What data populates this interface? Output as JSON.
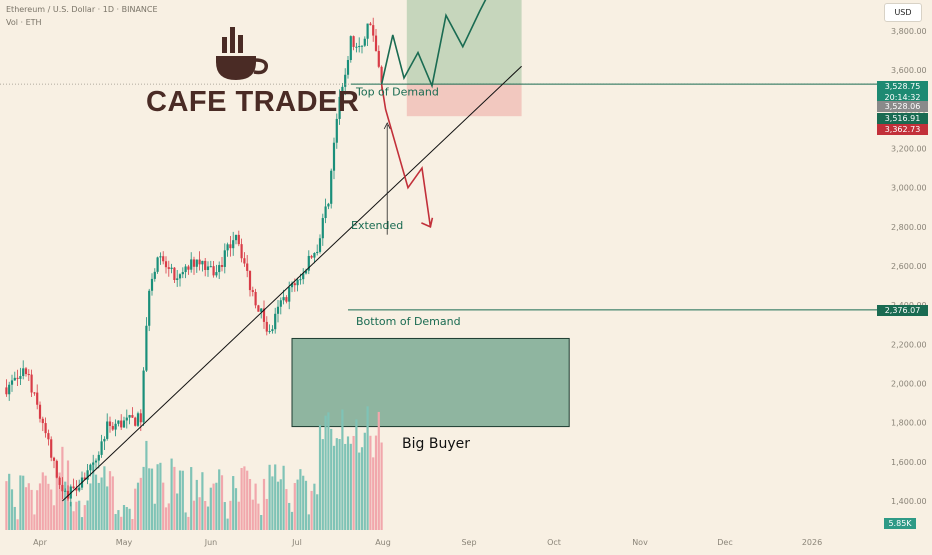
{
  "header": {
    "symbol": "Ethereum / U.S. Dollar · 1D · BINANCE",
    "volume_label": "Vol · ETH"
  },
  "currency_button": "USD",
  "brand": {
    "name": "CAFE TRADER",
    "color": "#4a2b25",
    "logo_icon": "coffee-cup-icon"
  },
  "annotations": {
    "top_of_demand": "Top of Demand",
    "extended": "Extended",
    "bottom_of_demand": "Bottom of Demand",
    "big_buyer": "Big Buyer"
  },
  "price_tags": [
    {
      "label": "3,528.75",
      "color": "#1e8a72"
    },
    {
      "label": "20:14:32",
      "color": "#1e8a72"
    },
    {
      "label": "3,528.06",
      "color": "#8a8a8a"
    },
    {
      "label": "3,516.91",
      "color": "#1a6b52"
    },
    {
      "label": "3,362.73",
      "color": "#c2303a"
    },
    {
      "label": "2,376.07",
      "color": "#1a6b52"
    }
  ],
  "volume_tag": {
    "label": "5.85K",
    "color": "#2e9a86"
  },
  "chart_data": {
    "type": "candlestick",
    "y_axis": {
      "ticks": [
        1400,
        1600,
        1800,
        2000,
        2200,
        2400,
        2600,
        2800,
        3000,
        3200,
        3400,
        3600,
        3800
      ],
      "tick_labels": [
        "1,400.00",
        "1,600.00",
        "1,800.00",
        "2,000.00",
        "2,200.00",
        "2,400.00",
        "2,600.00",
        "2,800.00",
        "3,000.00",
        "3,200.00",
        "3,400.00",
        "3,600.00",
        "3,800.00"
      ],
      "range": [
        1300,
        3900
      ]
    },
    "x_axis": {
      "labels": [
        "Apr",
        "May",
        "Jun",
        "Jul",
        "Aug",
        "Sep",
        "Oct",
        "Nov",
        "Dec",
        "2026"
      ]
    },
    "current_price": 3528.75,
    "colors": {
      "up": "#1a8f7a",
      "down": "#d83c47",
      "vol_up": "#7fc3b6",
      "vol_down": "#f1a7ac"
    },
    "key_points": [
      {
        "date": "Mar 20",
        "price": 1980
      },
      {
        "date": "Mar 27",
        "price": 2060
      },
      {
        "date": "Apr 2",
        "price": 1790
      },
      {
        "date": "Apr 9",
        "price": 1420
      },
      {
        "date": "Apr 20",
        "price": 1570
      },
      {
        "date": "Apr 25",
        "price": 1780
      },
      {
        "date": "May 7",
        "price": 1820
      },
      {
        "date": "May 10",
        "price": 2500
      },
      {
        "date": "May 13",
        "price": 2650
      },
      {
        "date": "May 20",
        "price": 2520
      },
      {
        "date": "May 27",
        "price": 2640
      },
      {
        "date": "Jun 3",
        "price": 2560
      },
      {
        "date": "Jun 10",
        "price": 2780
      },
      {
        "date": "Jun 15",
        "price": 2500
      },
      {
        "date": "Jun 22",
        "price": 2250
      },
      {
        "date": "Jun 26",
        "price": 2410
      },
      {
        "date": "Jul 3",
        "price": 2550
      },
      {
        "date": "Jul 9",
        "price": 2700
      },
      {
        "date": "Jul 13",
        "price": 2950
      },
      {
        "date": "Jul 16",
        "price": 3350
      },
      {
        "date": "Jul 21",
        "price": 3750
      },
      {
        "date": "Jul 24",
        "price": 3700
      },
      {
        "date": "Jul 28",
        "price": 3860
      },
      {
        "date": "Aug 1",
        "price": 3520
      }
    ],
    "zones": [
      {
        "label": "Big Buyer",
        "low": 1780,
        "high": 2230,
        "color": "#8fb5a0"
      },
      {
        "label": "target",
        "low": 3528,
        "high": 3900,
        "color": "#c6d6bc"
      },
      {
        "label": "stop",
        "low": 3365,
        "high": 3528,
        "color": "#f2c8bf"
      }
    ],
    "levels": [
      {
        "label": "Top of Demand",
        "price": 3528.75
      },
      {
        "label": "Bottom of Demand",
        "price": 2376.07
      }
    ],
    "trendline": [
      {
        "date": "Apr 9",
        "price": 1400
      },
      {
        "date": "Sep 20",
        "price": 3620
      }
    ],
    "projection_up": [
      3528,
      3780,
      3560,
      3690,
      3520,
      3880,
      3720,
      3900
    ],
    "projection_down": [
      3400,
      3150,
      3000,
      3100,
      2800
    ],
    "volume_peaks": [
      {
        "date": "Apr 9",
        "volume": 2
      },
      {
        "date": "May 9",
        "volume": 1
      },
      {
        "date": "Jul 22",
        "volume": 1
      },
      {
        "date": "Aug 1",
        "volume": 0.5
      }
    ]
  }
}
